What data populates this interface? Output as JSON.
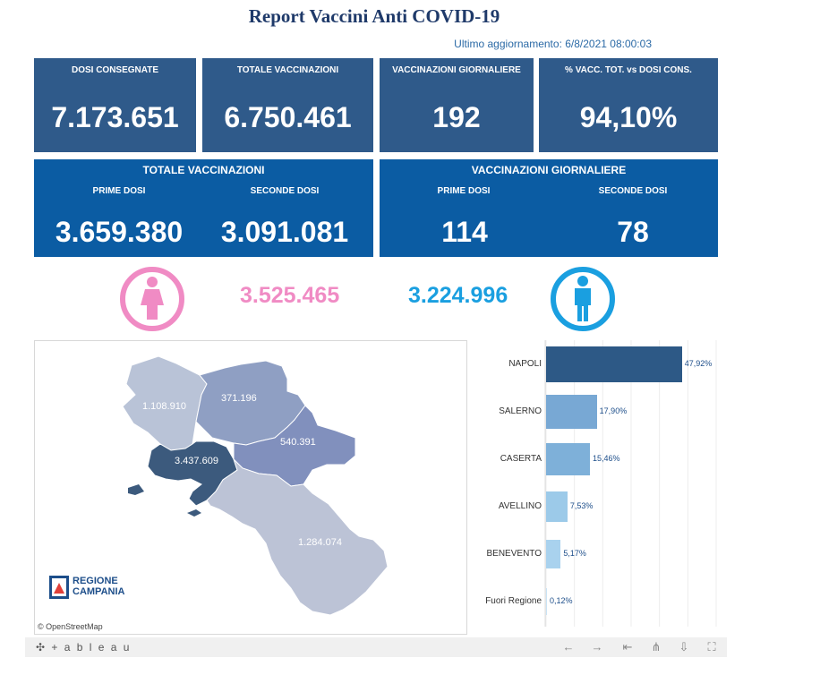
{
  "header": {
    "title": "Report Vaccini Anti COVID-19",
    "updated": "Ultimo aggiornamento: 6/8/2021 08:00:03"
  },
  "kpis": [
    {
      "label": "DOSI  CONSEGNATE",
      "value": "7.173.651"
    },
    {
      "label": "TOTALE VACCINAZIONI",
      "value": "6.750.461"
    },
    {
      "label": "VACCINAZIONI GIORNALIERE",
      "value": "192"
    },
    {
      "label": "% VACC. TOT. vs DOSI CONS.",
      "value": "94,10%"
    }
  ],
  "panel_total": {
    "title": "TOTALE VACCINAZIONI",
    "first_label": "PRIME DOSI",
    "first_value": "3.659.380",
    "second_label": "SECONDE DOSI",
    "second_value": "3.091.081"
  },
  "panel_daily": {
    "title": "VACCINAZIONI GIORNALIERE",
    "first_label": "PRIME DOSI",
    "first_value": "114",
    "second_label": "SECONDE DOSI",
    "second_value": "78"
  },
  "gender": {
    "female_value": "3.525.465",
    "male_value": "3.224.996",
    "female_color": "#f08bc4",
    "male_color": "#1a9fe0",
    "female_icon": "female-person-icon",
    "male_icon": "male-person-icon"
  },
  "map": {
    "provinces": [
      {
        "name": "Caserta",
        "value": "1.108.910",
        "color": "#b9c3d7"
      },
      {
        "name": "Benevento",
        "value": "371.196",
        "color": "#8f9fc3"
      },
      {
        "name": "Avellino",
        "value": "540.391",
        "color": "#8190bd"
      },
      {
        "name": "Napoli",
        "value": "3.437.609",
        "color": "#3c5a7d"
      },
      {
        "name": "Salerno",
        "value": "1.284.074",
        "color": "#bcc3d6"
      }
    ],
    "logo_line1": "REGIONE",
    "logo_line2": "CAMPANIA",
    "attribution": "© OpenStreetMap"
  },
  "chart_data": {
    "type": "bar",
    "orientation": "horizontal",
    "categories": [
      "NAPOLI",
      "SALERNO",
      "CASERTA",
      "AVELLINO",
      "BENEVENTO",
      "Fuori Regione"
    ],
    "values": [
      47.92,
      17.9,
      15.46,
      7.53,
      5.17,
      0.12
    ],
    "labels": [
      "47,92%",
      "17,90%",
      "15,46%",
      "7,53%",
      "5,17%",
      "0,12%"
    ],
    "colors": [
      "#2d5986",
      "#78a8d4",
      "#7eb0d9",
      "#9ccae9",
      "#a9d2ee",
      "#c9e3f5"
    ],
    "xlim": [
      0,
      60
    ]
  },
  "footer": {
    "brand": "+ a b l e a u",
    "buttons": [
      "undo-icon",
      "redo-icon",
      "revert-icon",
      "share-icon",
      "download-icon",
      "fullscreen-icon"
    ]
  }
}
